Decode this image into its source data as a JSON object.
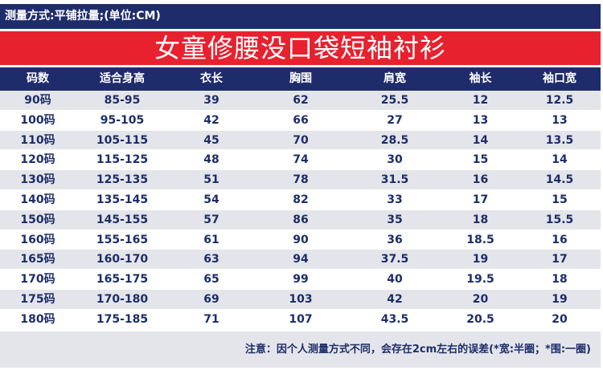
{
  "measure_method": "测量方式:平铺拉量;(单位:CM)",
  "title": "女童修腰没口袋短袖衬衫",
  "table": {
    "headers": [
      "码数",
      "适合身高",
      "衣长",
      "胸围",
      "肩宽",
      "袖长",
      "袖口宽"
    ],
    "rows": [
      [
        "90码",
        "85-95",
        "39",
        "62",
        "25.5",
        "12",
        "12.5"
      ],
      [
        "100码",
        "95-105",
        "42",
        "66",
        "27",
        "13",
        "13"
      ],
      [
        "110码",
        "105-115",
        "45",
        "70",
        "28.5",
        "14",
        "13.5"
      ],
      [
        "120码",
        "115-125",
        "48",
        "74",
        "30",
        "15",
        "14"
      ],
      [
        "130码",
        "125-135",
        "51",
        "78",
        "31.5",
        "16",
        "14.5"
      ],
      [
        "140码",
        "135-145",
        "54",
        "82",
        "33",
        "17",
        "15"
      ],
      [
        "150码",
        "145-155",
        "57",
        "86",
        "35",
        "18",
        "15.5"
      ],
      [
        "160码",
        "155-165",
        "61",
        "90",
        "36",
        "18.5",
        "16"
      ],
      [
        "165码",
        "160-170",
        "63",
        "94",
        "37.5",
        "19",
        "17"
      ],
      [
        "170码",
        "165-175",
        "65",
        "99",
        "40",
        "19.5",
        "18"
      ],
      [
        "175码",
        "170-180",
        "69",
        "103",
        "42",
        "20",
        "19"
      ],
      [
        "180码",
        "175-185",
        "71",
        "107",
        "43.5",
        "20.5",
        "20"
      ]
    ]
  },
  "note": "注意：因个人测量方式不同，会存在2cm左右的误差(*宽:半圈；*围:一圈)",
  "colors": {
    "navy": "#1f2c6b",
    "red": "#e8212f",
    "stripe": "#e4e5ea",
    "text": "#1d2d6a"
  }
}
